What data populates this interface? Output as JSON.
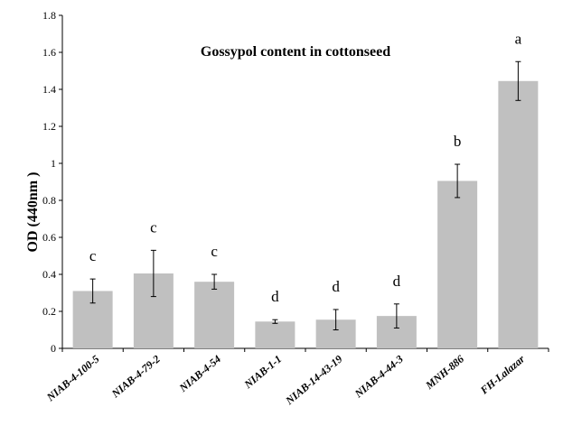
{
  "chart_data": {
    "type": "bar",
    "title": "Gossypol content in cottonseed",
    "xlabel": "",
    "ylabel": "OD (440nm )",
    "ylim": [
      0,
      1.8
    ],
    "yticks": [
      "0",
      "0.2",
      "0.4",
      "0.6",
      "0.8",
      "1",
      "1.2",
      "1.4",
      "1.6",
      "1.8"
    ],
    "ytick_values": [
      0,
      0.2,
      0.4,
      0.6,
      0.8,
      1.0,
      1.2,
      1.4,
      1.6,
      1.8
    ],
    "grid": false,
    "bar_color": "#c0c0c0",
    "categories": [
      "NIAB-4-100-5",
      "NIAB-4-79-2",
      "NIAB-4-54",
      "NIAB-1-1",
      "NIAB-14-43-19",
      "NIAB-4-44-3",
      "MNH-886",
      "FH-Lalazar"
    ],
    "values": [
      0.31,
      0.405,
      0.36,
      0.145,
      0.155,
      0.175,
      0.905,
      1.445
    ],
    "errors": [
      0.065,
      0.125,
      0.04,
      0.01,
      0.055,
      0.065,
      0.09,
      0.105
    ],
    "letters": [
      "c",
      "c",
      "c",
      "d",
      "d",
      "d",
      "b",
      "a"
    ]
  }
}
